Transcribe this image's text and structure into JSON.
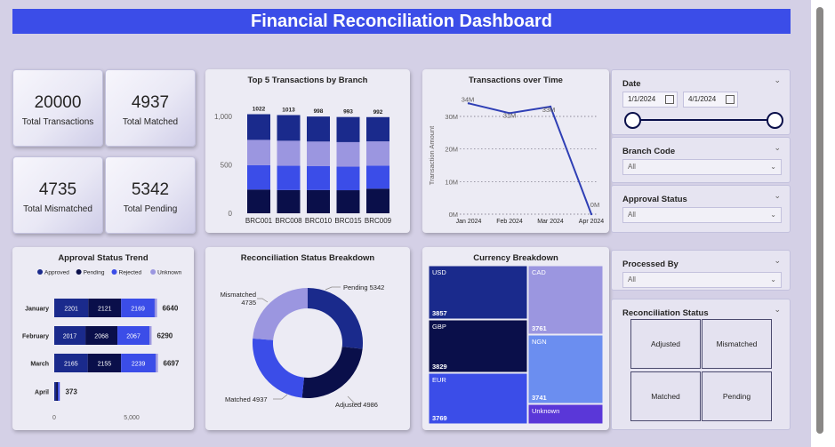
{
  "title": "Financial Reconciliation Dashboard",
  "kpis": {
    "total_transactions": {
      "value": "20000",
      "label": "Total Transactions"
    },
    "total_matched": {
      "value": "4937",
      "label": "Total Matched"
    },
    "total_mismatched": {
      "value": "4735",
      "label": "Total Mismatched"
    },
    "total_pending": {
      "value": "5342",
      "label": "Total Pending"
    }
  },
  "slicers": {
    "date": {
      "title": "Date",
      "start": "1/1/2024",
      "end": "4/1/2024"
    },
    "branch_code": {
      "title": "Branch Code",
      "value": "All"
    },
    "approval_status": {
      "title": "Approval Status",
      "value": "All"
    },
    "processed_by": {
      "title": "Processed By",
      "value": "All"
    },
    "reconciliation_status": {
      "title": "Reconciliation Status",
      "options": [
        "Adjusted",
        "Mismatched",
        "Matched",
        "Pending"
      ]
    }
  },
  "colors": {
    "approved": "#1a2a8c",
    "pending": "#0a0f4a",
    "rejected": "#3b4de8",
    "unknown": "#9b96e0",
    "banner": "#3b4de8",
    "line": "#2f3fb5"
  },
  "icons": [
    "chevron-down-icon",
    "calendar-icon"
  ],
  "chart_data": [
    {
      "title": "Top 5 Transactions by Branch",
      "type": "bar",
      "stacked": true,
      "categories": [
        "BRC001",
        "BRC008",
        "BRC010",
        "BRC015",
        "BRC009"
      ],
      "totals": [
        1022,
        1013,
        998,
        993,
        992
      ],
      "total_labels": [
        "1022",
        "1013",
        "998",
        "993",
        "992"
      ],
      "series": [
        {
          "values": [
            245,
            240,
            240,
            238,
            254
          ]
        },
        {
          "values": [
            252,
            250,
            248,
            243,
            238
          ]
        },
        {
          "values": [
            260,
            258,
            252,
            253,
            250
          ]
        },
        {
          "values": [
            265,
            265,
            258,
            259,
            250
          ]
        }
      ],
      "yticks": [
        "1,000",
        "500",
        "0"
      ],
      "ylim": [
        0,
        1100
      ]
    },
    {
      "title": "Transactions over Time",
      "type": "line",
      "x": [
        "Jan 2024",
        "Feb 2024",
        "Mar 2024",
        "Apr 2024"
      ],
      "values": [
        34,
        31,
        33,
        0
      ],
      "data_labels": [
        "34M",
        "31M",
        "33M",
        "0M"
      ],
      "ylabel": "Transaction Amount",
      "yticks": [
        "30M",
        "20M",
        "10M",
        "0M"
      ],
      "ylim": [
        0,
        36
      ]
    },
    {
      "title": "Approval Status Trend",
      "type": "bar",
      "orientation": "horizontal",
      "stacked": true,
      "legend": [
        "Approved",
        "Pending",
        "Rejected",
        "Unknown"
      ],
      "categories": [
        "January",
        "February",
        "March",
        "April"
      ],
      "series": [
        {
          "name": "Approved",
          "values": [
            2201,
            2017,
            2165,
            120
          ]
        },
        {
          "name": "Pending",
          "values": [
            2121,
            2068,
            2155,
            120
          ]
        },
        {
          "name": "Rejected",
          "values": [
            2169,
            2067,
            2239,
            110
          ]
        },
        {
          "name": "Unknown",
          "values": [
            149,
            138,
            138,
            23
          ]
        }
      ],
      "segment_labels": [
        [
          "2201",
          "2121",
          "2169"
        ],
        [
          "2017",
          "2068",
          "2067"
        ],
        [
          "2165",
          "2155",
          "2239"
        ]
      ],
      "totals": [
        "6640",
        "6290",
        "6697",
        "373"
      ],
      "xticks": [
        "0",
        "5,000"
      ]
    },
    {
      "title": "Reconciliation Status Breakdown",
      "type": "pie",
      "donut": true,
      "slices": [
        {
          "label": "Pending 5342",
          "value": 5342
        },
        {
          "label": "Adjusted 4986",
          "value": 4986
        },
        {
          "label": "Matched 4937",
          "value": 4937
        },
        {
          "label": "Mismatched 4735",
          "value": 4735
        }
      ],
      "label_lines": {
        "mismatched_a": "Mismatched",
        "mismatched_b": "4735"
      }
    },
    {
      "title": "Currency Breakdown",
      "type": "treemap",
      "items": [
        {
          "name": "USD",
          "value": "3857"
        },
        {
          "name": "GBP",
          "value": "3829"
        },
        {
          "name": "EUR",
          "value": "3769"
        },
        {
          "name": "CAD",
          "value": "3761"
        },
        {
          "name": "NGN",
          "value": "3741"
        },
        {
          "name": "Unknown",
          "value": ""
        }
      ]
    }
  ]
}
